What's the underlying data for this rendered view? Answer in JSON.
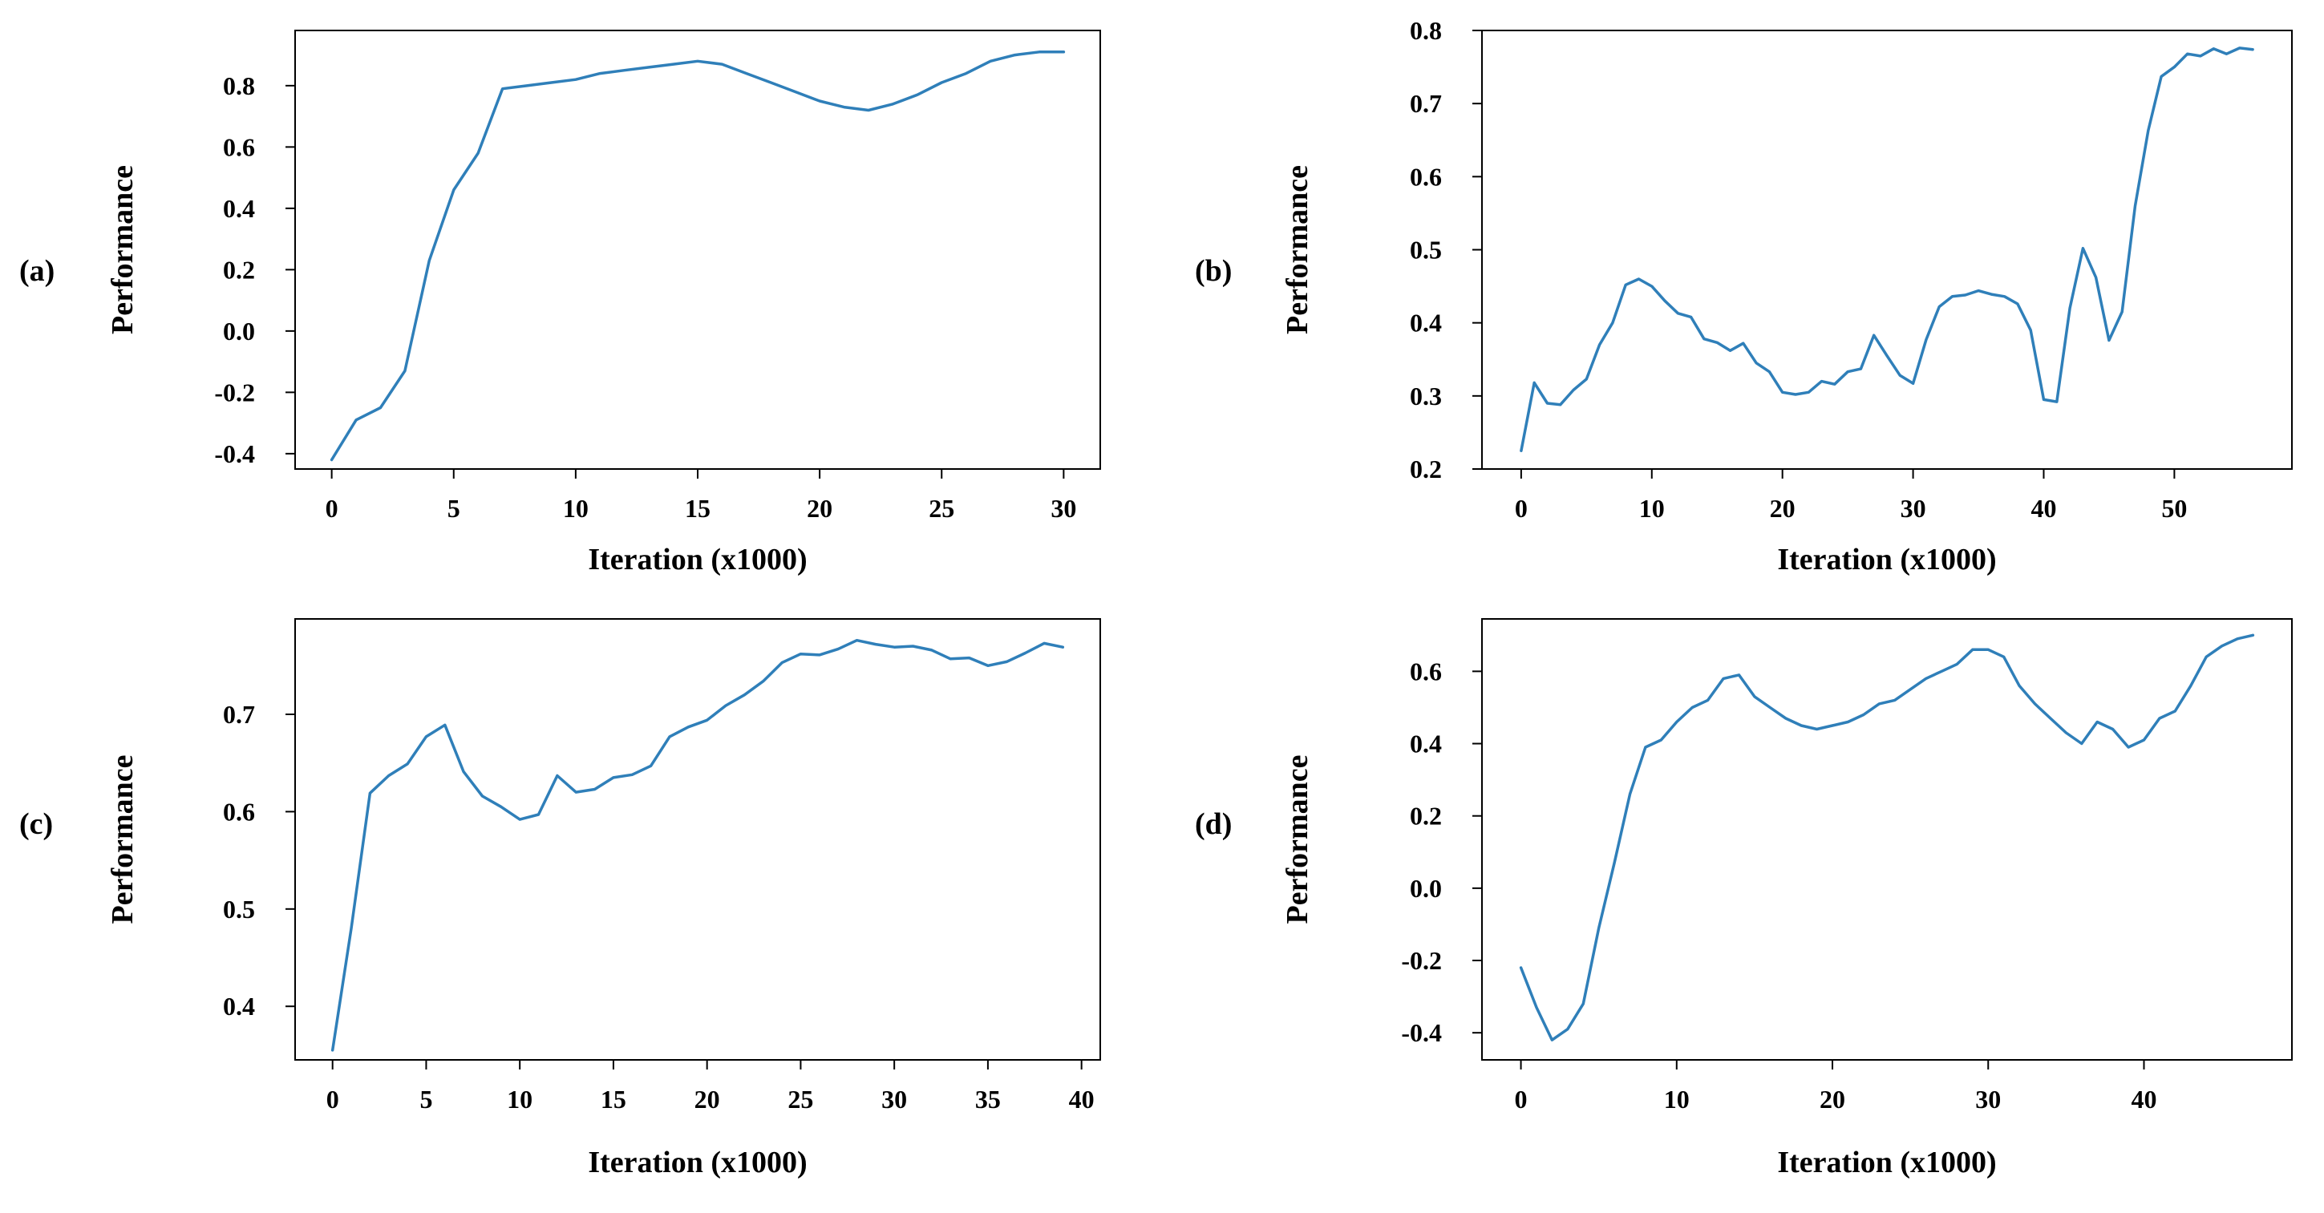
{
  "style": {
    "line_color": "#2f7fb9"
  },
  "chart_data": [
    {
      "type": "line",
      "panel_label": "(a)",
      "xlabel": "Iteration (x1000)",
      "ylabel": "Performance",
      "xlim": [
        -1.5,
        31.5
      ],
      "ylim": [
        -0.45,
        0.98
      ],
      "xticks": [
        0,
        5,
        10,
        15,
        20,
        25,
        30
      ],
      "yticks": [
        -0.4,
        -0.2,
        0.0,
        0.2,
        0.4,
        0.6,
        0.8
      ],
      "ytick_labels": [
        "-0.4",
        "-0.2",
        "0.0",
        "0.2",
        "0.4",
        "0.6",
        "0.8"
      ],
      "series": [
        {
          "x": [
            0,
            1,
            2,
            3,
            4,
            5,
            6,
            7,
            8,
            9,
            10,
            11,
            12,
            13,
            14,
            15,
            16,
            17,
            18,
            19,
            20,
            21,
            22,
            23,
            24,
            25,
            26,
            27,
            28,
            29,
            30
          ],
          "y": [
            -0.42,
            -0.29,
            -0.25,
            -0.13,
            0.23,
            0.46,
            0.58,
            0.79,
            0.8,
            0.81,
            0.82,
            0.84,
            0.85,
            0.86,
            0.87,
            0.88,
            0.87,
            0.84,
            0.81,
            0.78,
            0.75,
            0.73,
            0.72,
            0.74,
            0.77,
            0.81,
            0.84,
            0.88,
            0.9,
            0.91,
            0.91
          ]
        }
      ]
    },
    {
      "type": "line",
      "panel_label": "(b)",
      "xlabel": "Iteration (x1000)",
      "ylabel": "Performance",
      "xlim": [
        -3,
        59
      ],
      "ylim": [
        0.2,
        0.8
      ],
      "xticks": [
        0,
        10,
        20,
        30,
        40,
        50
      ],
      "yticks": [
        0.2,
        0.3,
        0.4,
        0.5,
        0.6,
        0.7,
        0.8
      ],
      "ytick_labels": [
        "0.2",
        "0.3",
        "0.4",
        "0.5",
        "0.6",
        "0.7",
        "0.8"
      ],
      "series": [
        {
          "x": [
            0,
            1,
            2,
            3,
            4,
            5,
            6,
            7,
            8,
            9,
            10,
            11,
            12,
            13,
            14,
            15,
            16,
            17,
            18,
            19,
            20,
            21,
            22,
            23,
            24,
            25,
            26,
            27,
            28,
            29,
            30,
            31,
            32,
            33,
            34,
            35,
            36,
            37,
            38,
            39,
            40,
            41,
            42,
            43,
            44,
            45,
            46,
            47,
            48,
            49,
            50,
            51,
            52,
            53,
            54,
            55,
            56
          ],
          "y": [
            0.225,
            0.318,
            0.29,
            0.288,
            0.308,
            0.323,
            0.37,
            0.4,
            0.452,
            0.46,
            0.45,
            0.43,
            0.413,
            0.408,
            0.378,
            0.373,
            0.362,
            0.372,
            0.345,
            0.333,
            0.305,
            0.302,
            0.305,
            0.32,
            0.316,
            0.333,
            0.337,
            0.383,
            0.355,
            0.328,
            0.317,
            0.377,
            0.422,
            0.436,
            0.438,
            0.444,
            0.439,
            0.436,
            0.426,
            0.39,
            0.295,
            0.292,
            0.42,
            0.502,
            0.462,
            0.376,
            0.415,
            0.56,
            0.663,
            0.737,
            0.75,
            0.768,
            0.765,
            0.775,
            0.768,
            0.776,
            0.774
          ]
        }
      ]
    },
    {
      "type": "line",
      "panel_label": "(c)",
      "xlabel": "Iteration (x1000)",
      "ylabel": "Performance",
      "xlim": [
        -2,
        41
      ],
      "ylim": [
        0.345,
        0.798
      ],
      "xticks": [
        0,
        5,
        10,
        15,
        20,
        25,
        30,
        35,
        40
      ],
      "yticks": [
        0.4,
        0.5,
        0.6,
        0.7
      ],
      "ytick_labels": [
        "0.4",
        "0.5",
        "0.6",
        "0.7"
      ],
      "series": [
        {
          "x": [
            0,
            1,
            2,
            3,
            4,
            5,
            6,
            7,
            8,
            9,
            10,
            11,
            12,
            13,
            14,
            15,
            16,
            17,
            18,
            19,
            20,
            21,
            22,
            23,
            24,
            25,
            26,
            27,
            28,
            29,
            30,
            31,
            32,
            33,
            34,
            35,
            36,
            37,
            38,
            39
          ],
          "y": [
            0.355,
            0.48,
            0.619,
            0.637,
            0.649,
            0.677,
            0.689,
            0.641,
            0.616,
            0.605,
            0.592,
            0.597,
            0.637,
            0.62,
            0.623,
            0.635,
            0.638,
            0.647,
            0.677,
            0.687,
            0.694,
            0.709,
            0.72,
            0.734,
            0.753,
            0.762,
            0.761,
            0.767,
            0.776,
            0.772,
            0.769,
            0.77,
            0.766,
            0.757,
            0.758,
            0.75,
            0.754,
            0.763,
            0.773,
            0.769
          ]
        }
      ]
    },
    {
      "type": "line",
      "panel_label": "(d)",
      "xlabel": "Iteration (x1000)",
      "ylabel": "Performance",
      "xlim": [
        -2.5,
        49.5
      ],
      "ylim": [
        -0.475,
        0.745
      ],
      "xticks": [
        0,
        10,
        20,
        30,
        40
      ],
      "yticks": [
        -0.4,
        -0.2,
        0.0,
        0.2,
        0.4,
        0.6
      ],
      "ytick_labels": [
        "-0.4",
        "-0.2",
        "0.0",
        "0.2",
        "0.4",
        "0.6"
      ],
      "series": [
        {
          "x": [
            0,
            1,
            2,
            3,
            4,
            5,
            6,
            7,
            8,
            9,
            10,
            11,
            12,
            13,
            14,
            15,
            16,
            17,
            18,
            19,
            20,
            21,
            22,
            23,
            24,
            25,
            26,
            27,
            28,
            29,
            30,
            31,
            32,
            33,
            34,
            35,
            36,
            37,
            38,
            39,
            40,
            41,
            42,
            43,
            44,
            45,
            46,
            47
          ],
          "y": [
            -0.22,
            -0.33,
            -0.42,
            -0.39,
            -0.32,
            -0.11,
            0.07,
            0.26,
            0.39,
            0.41,
            0.46,
            0.5,
            0.52,
            0.58,
            0.59,
            0.53,
            0.5,
            0.47,
            0.45,
            0.44,
            0.45,
            0.46,
            0.48,
            0.51,
            0.52,
            0.55,
            0.58,
            0.6,
            0.62,
            0.66,
            0.66,
            0.64,
            0.56,
            0.51,
            0.47,
            0.43,
            0.4,
            0.46,
            0.44,
            0.39,
            0.41,
            0.47,
            0.49,
            0.56,
            0.64,
            0.67,
            0.69,
            0.7
          ]
        }
      ]
    }
  ]
}
